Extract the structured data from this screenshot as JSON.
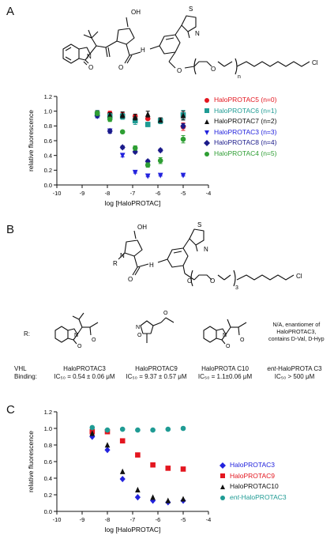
{
  "panel_a": {
    "letter": "A",
    "structure_labels": {
      "oh": "OH",
      "s": "S",
      "n_thiazole": "N",
      "n": "N",
      "o_amide1": "O",
      "o_amide2": "O",
      "nh": "H",
      "o_linker": "O",
      "o_chain": "O",
      "n_sub": "n",
      "cl": "Cl"
    }
  },
  "panel_b": {
    "letter": "B",
    "structure_labels": {
      "oh": "OH",
      "s": "S",
      "n_thiazole": "N",
      "n": "N",
      "r": "R",
      "o_amide": "O",
      "nh": "H",
      "o1": "O",
      "o2": "O",
      "sub": "3",
      "cl": "Cl"
    },
    "r_label": "R:",
    "r_groups": [
      {
        "labels": {
          "n": "N",
          "o": "O",
          "o2": "O"
        }
      },
      {
        "labels": {
          "n": "N",
          "o": "O",
          "o2": "O"
        }
      },
      {
        "labels": {
          "n": "N",
          "o": "O",
          "o2": "O"
        }
      }
    ],
    "ent_note": [
      "N/A, enantiomer of",
      "HaloPROTAC3,",
      "contains D-Val, D-Hyp"
    ],
    "vhl_label": [
      "VHL",
      "Binding:"
    ],
    "compounds": [
      {
        "name": "HaloPROTAC3",
        "ic50": "IC₅₀ = 0.54 ± 0.06 μM"
      },
      {
        "name": "HaloPROTAC9",
        "ic50": "IC₅₀ = 9.37 ± 0.57 μM"
      },
      {
        "name": "HaloPROTA C10",
        "ic50": "IC₅₀ = 1.1±0.06 μM"
      },
      {
        "name_prefix": "ent",
        "name": "-HaloPROTA C3",
        "ic50": "IC₅₀ > 500 μM"
      }
    ]
  },
  "panel_c": {
    "letter": "C"
  },
  "chart_data": [
    {
      "type": "scatter",
      "panel": "A",
      "xlabel": "log [HaloPROTAC]",
      "ylabel": "relative fluorescence",
      "xlim": [
        -10,
        -4
      ],
      "ylim": [
        0,
        1.2
      ],
      "xticks": [
        -10,
        -9,
        -8,
        -7,
        -6,
        -5,
        -4
      ],
      "yticks": [
        0.0,
        0.2,
        0.4,
        0.6,
        0.8,
        1.0,
        1.2
      ],
      "legend_position": "right",
      "series": [
        {
          "name": "HaloPROTAC5 (n=0)",
          "color": "#e3161f",
          "marker": "circle",
          "x": [
            -8.4,
            -7.9,
            -7.4,
            -6.9,
            -6.4,
            -5.9,
            -5.0
          ],
          "y": [
            0.98,
            0.97,
            0.95,
            0.93,
            0.9,
            0.87,
            0.79
          ],
          "err": [
            0.03,
            0.03,
            0.03,
            0.02,
            0.02,
            0.03,
            0.05
          ]
        },
        {
          "name": "HaloPROTAC6 (n=1)",
          "color": "#1f9b94",
          "marker": "square",
          "x": [
            -8.4,
            -7.9,
            -7.4,
            -6.9,
            -6.4,
            -5.9,
            -5.0
          ],
          "y": [
            0.96,
            0.93,
            0.93,
            0.87,
            0.82,
            0.87,
            0.95
          ],
          "err": [
            0.05,
            0.04,
            0.04,
            0.05,
            0.03,
            0.04,
            0.06
          ]
        },
        {
          "name": "HaloPROTAC7 (n=2)",
          "color": "#111111",
          "marker": "triangle-up",
          "x": [
            -8.4,
            -7.9,
            -7.4,
            -6.9,
            -6.4,
            -5.9,
            -5.0
          ],
          "y": [
            0.97,
            0.95,
            0.95,
            0.92,
            0.96,
            0.88,
            0.94
          ],
          "err": [
            0.03,
            0.03,
            0.04,
            0.04,
            0.04,
            0.03,
            0.06
          ]
        },
        {
          "name": "HaloPROTAC3 (n=3)",
          "color": "#2222dd",
          "marker": "triangle-down",
          "x": [
            -8.4,
            -7.9,
            -7.4,
            -6.9,
            -6.4,
            -5.9,
            -5.0
          ],
          "y": [
            0.93,
            0.73,
            0.4,
            0.17,
            0.12,
            0.13,
            0.13
          ],
          "err": [
            0.02,
            0.02,
            0.02,
            0.01,
            0.01,
            0.01,
            0.01
          ]
        },
        {
          "name": "HaloPROTAC8 (n=4)",
          "color": "#1a1a8a",
          "marker": "diamond",
          "x": [
            -8.4,
            -7.9,
            -7.4,
            -6.9,
            -6.4,
            -5.9,
            -5.0
          ],
          "y": [
            0.94,
            0.73,
            0.51,
            0.45,
            0.32,
            0.47,
            0.8
          ],
          "err": [
            0.02,
            0.03,
            0.02,
            0.02,
            0.02,
            0.02,
            0.03
          ]
        },
        {
          "name": "HaloPROTAC4 (n=5)",
          "color": "#2e9e33",
          "marker": "circle",
          "x": [
            -8.4,
            -7.9,
            -7.4,
            -6.9,
            -6.4,
            -5.9,
            -5.0
          ],
          "y": [
            0.97,
            0.89,
            0.72,
            0.5,
            0.27,
            0.33,
            0.62
          ],
          "err": [
            0.03,
            0.03,
            0.02,
            0.03,
            0.03,
            0.04,
            0.05
          ]
        }
      ]
    },
    {
      "type": "scatter",
      "panel": "C",
      "xlabel": "log [HaloPROTAC]",
      "ylabel": "relative fluorescence",
      "xlim": [
        -10,
        -4
      ],
      "ylim": [
        0,
        1.2
      ],
      "xticks": [
        -10,
        -9,
        -8,
        -7,
        -6,
        -5,
        -4
      ],
      "yticks": [
        0.0,
        0.2,
        0.4,
        0.6,
        0.8,
        1.0,
        1.2
      ],
      "legend_position": "right",
      "series": [
        {
          "name": "HaloPROTAC3",
          "color": "#2222dd",
          "marker": "diamond",
          "x": [
            -8.6,
            -8.0,
            -7.4,
            -6.8,
            -6.2,
            -5.6,
            -5.0
          ],
          "y": [
            0.9,
            0.74,
            0.39,
            0.17,
            0.13,
            0.11,
            0.13
          ],
          "err": [
            0,
            0,
            0,
            0,
            0,
            0,
            0
          ]
        },
        {
          "name": "HaloPROTAC9",
          "color": "#e3161f",
          "marker": "square",
          "x": [
            -8.6,
            -8.0,
            -7.4,
            -6.8,
            -6.2,
            -5.6,
            -5.0
          ],
          "y": [
            0.96,
            0.96,
            0.85,
            0.68,
            0.56,
            0.52,
            0.51
          ],
          "err": [
            0,
            0,
            0,
            0,
            0,
            0,
            0
          ]
        },
        {
          "name": "HaloPROTAC10",
          "color": "#111111",
          "marker": "triangle-up",
          "x": [
            -8.6,
            -8.0,
            -7.4,
            -6.8,
            -6.2,
            -5.6,
            -5.0
          ],
          "y": [
            0.94,
            0.8,
            0.48,
            0.26,
            0.17,
            0.13,
            0.15
          ],
          "err": [
            0,
            0,
            0,
            0,
            0,
            0,
            0
          ]
        },
        {
          "name_prefix": "ent",
          "name": "-HaloPROTAC3",
          "color": "#1f9b94",
          "marker": "circle",
          "x": [
            -8.6,
            -8.0,
            -7.4,
            -6.8,
            -6.2,
            -5.6,
            -5.0
          ],
          "y": [
            1.01,
            0.98,
            0.99,
            0.98,
            0.98,
            0.99,
            1.0
          ],
          "err": [
            0,
            0,
            0,
            0,
            0,
            0,
            0
          ]
        }
      ]
    }
  ]
}
